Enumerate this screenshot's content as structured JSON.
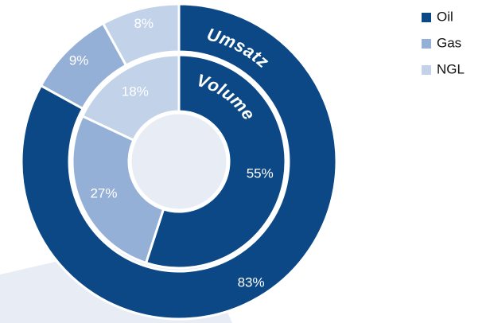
{
  "chart_data": {
    "type": "donut",
    "categories": [
      "Oil",
      "Gas",
      "NGL"
    ],
    "colors": [
      "#0b4885",
      "#95b0d7",
      "#c1d2e9"
    ],
    "series": [
      {
        "name": "Umsatz",
        "values": [
          83,
          9,
          8
        ],
        "value_labels": [
          "83%",
          "9%",
          "8%"
        ]
      },
      {
        "name": "Volume",
        "values": [
          55,
          27,
          18
        ],
        "value_labels": [
          "55%",
          "27%",
          "18%"
        ]
      }
    ],
    "legend": "upper right"
  }
}
